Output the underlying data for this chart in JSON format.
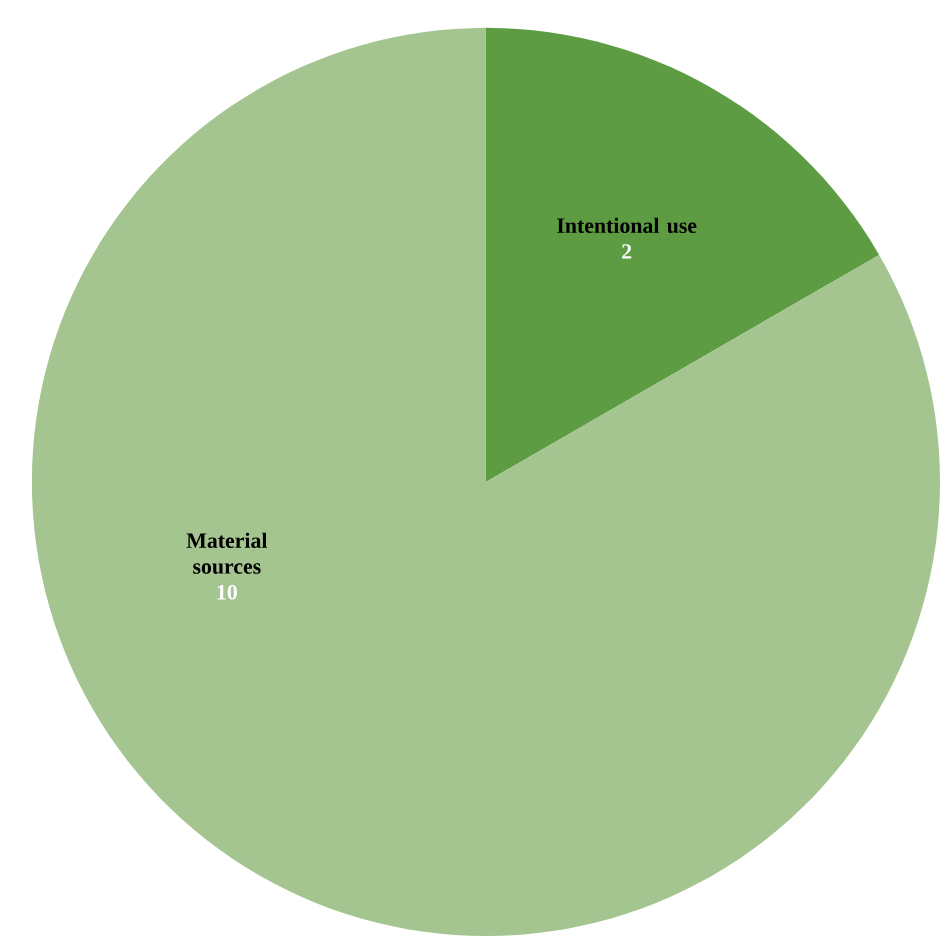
{
  "chart_data": {
    "type": "pie",
    "categories": [
      "Intentional use",
      "Material sources"
    ],
    "values": [
      2,
      10
    ],
    "colors": [
      "#5e9c44",
      "#a4c590"
    ],
    "data_labels": true
  }
}
